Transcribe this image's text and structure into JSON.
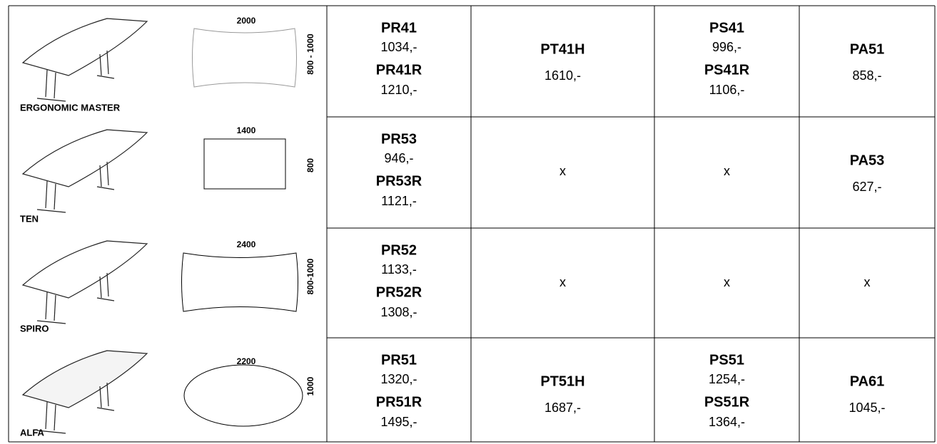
{
  "rows": [
    {
      "name": "ERGONOMIC MASTER",
      "width": "2000",
      "depth": "800 - 1000",
      "cells": [
        {
          "items": [
            {
              "code": "PR41",
              "price": "1034,-"
            },
            {
              "code": "PR41R",
              "price": "1210,-"
            }
          ]
        },
        {
          "items": [
            {
              "code": "PT41H",
              "price": "1610,-"
            }
          ]
        },
        {
          "items": [
            {
              "code": "PS41",
              "price": "996,-"
            },
            {
              "code": "PS41R",
              "price": "1106,-"
            }
          ]
        },
        {
          "items": [
            {
              "code": "PA51",
              "price": "858,-"
            }
          ]
        }
      ]
    },
    {
      "name": "TEN",
      "width": "1400",
      "depth": "800",
      "cells": [
        {
          "items": [
            {
              "code": "PR53",
              "price": "946,-"
            },
            {
              "code": "PR53R",
              "price": "1121,-"
            }
          ]
        },
        {
          "mark": "x"
        },
        {
          "mark": "x"
        },
        {
          "items": [
            {
              "code": "PA53",
              "price": "627,-"
            }
          ]
        }
      ]
    },
    {
      "name": "SPIRO",
      "width": "2400",
      "depth": "800-1000",
      "cells": [
        {
          "items": [
            {
              "code": "PR52",
              "price": "1133,-"
            },
            {
              "code": "PR52R",
              "price": "1308,-"
            }
          ]
        },
        {
          "mark": "x"
        },
        {
          "mark": "x"
        },
        {
          "mark": "x"
        }
      ]
    },
    {
      "name": "ALFA",
      "width": "2200",
      "depth": "1000",
      "cells": [
        {
          "items": [
            {
              "code": "PR51",
              "price": "1320,-"
            },
            {
              "code": "PR51R",
              "price": "1495,-"
            }
          ]
        },
        {
          "items": [
            {
              "code": "PT51H",
              "price": "1687,-"
            }
          ]
        },
        {
          "items": [
            {
              "code": "PS51",
              "price": "1254,-"
            },
            {
              "code": "PS51R",
              "price": "1364,-"
            }
          ]
        },
        {
          "items": [
            {
              "code": "PA61",
              "price": "1045,-"
            }
          ]
        }
      ]
    }
  ]
}
